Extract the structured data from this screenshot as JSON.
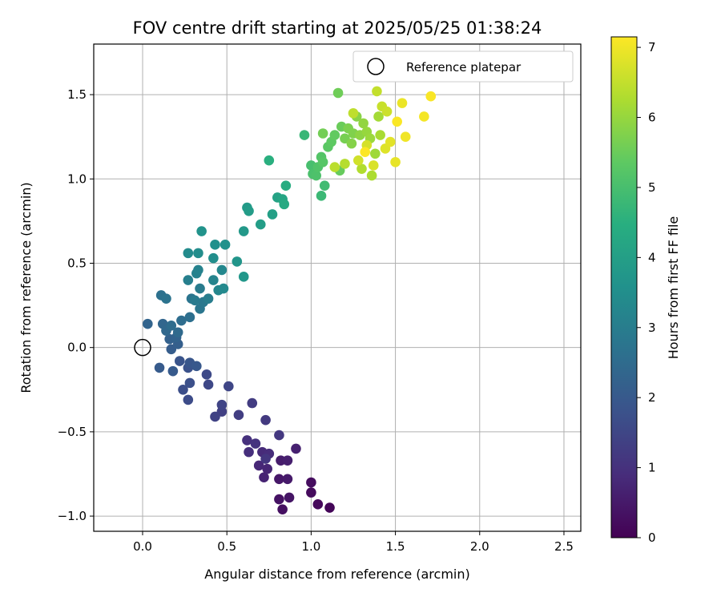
{
  "chart_data": {
    "type": "scatter",
    "title": "FOV centre drift starting at 2025/05/25 01:38:24",
    "xlabel": "Angular distance from reference (arcmin)",
    "ylabel": "Rotation from reference (arcmin)",
    "xlim": [
      -0.29,
      2.6
    ],
    "ylim": [
      -1.09,
      1.8
    ],
    "xticks": [
      0.0,
      0.5,
      1.0,
      1.5,
      2.0,
      2.5
    ],
    "xtick_labels": [
      "0.0",
      "0.5",
      "1.0",
      "1.5",
      "2.0",
      "2.5"
    ],
    "yticks": [
      -1.0,
      -0.5,
      0.0,
      0.5,
      1.0,
      1.5
    ],
    "ytick_labels": [
      "−1.0",
      "−0.5",
      "0.0",
      "0.5",
      "1.0",
      "1.5"
    ],
    "grid": true,
    "legend": {
      "position": "top-right",
      "entries": [
        "Reference platepar"
      ]
    },
    "reference_point": {
      "x": 0.0,
      "y": 0.0,
      "label": "Reference platepar"
    },
    "colorbar": {
      "label": "Hours from first FF file",
      "colormap": "viridis",
      "range": [
        0,
        7.15
      ],
      "ticks": [
        0,
        1,
        2,
        3,
        4,
        5,
        6,
        7
      ],
      "tick_labels": [
        "0",
        "1",
        "2",
        "3",
        "4",
        "5",
        "6",
        "7"
      ]
    },
    "points": [
      {
        "x": 1.11,
        "y": -0.95,
        "h": 0.1
      },
      {
        "x": 1.04,
        "y": -0.93,
        "h": 0.15
      },
      {
        "x": 1.0,
        "y": -0.86,
        "h": 0.2
      },
      {
        "x": 1.0,
        "y": -0.8,
        "h": 0.25
      },
      {
        "x": 0.83,
        "y": -0.96,
        "h": 0.3
      },
      {
        "x": 0.81,
        "y": -0.9,
        "h": 0.35
      },
      {
        "x": 0.87,
        "y": -0.89,
        "h": 0.4
      },
      {
        "x": 0.81,
        "y": -0.78,
        "h": 0.45
      },
      {
        "x": 0.86,
        "y": -0.78,
        "h": 0.5
      },
      {
        "x": 0.82,
        "y": -0.67,
        "h": 0.55
      },
      {
        "x": 0.86,
        "y": -0.67,
        "h": 0.6
      },
      {
        "x": 0.91,
        "y": -0.6,
        "h": 0.65
      },
      {
        "x": 0.72,
        "y": -0.77,
        "h": 0.7
      },
      {
        "x": 0.74,
        "y": -0.72,
        "h": 0.75
      },
      {
        "x": 0.69,
        "y": -0.7,
        "h": 0.8
      },
      {
        "x": 0.71,
        "y": -0.62,
        "h": 0.85
      },
      {
        "x": 0.75,
        "y": -0.63,
        "h": 0.9
      },
      {
        "x": 0.63,
        "y": -0.62,
        "h": 0.95
      },
      {
        "x": 0.62,
        "y": -0.55,
        "h": 1.0
      },
      {
        "x": 0.67,
        "y": -0.57,
        "h": 1.05
      },
      {
        "x": 0.73,
        "y": -0.66,
        "h": 1.1
      },
      {
        "x": 0.81,
        "y": -0.52,
        "h": 1.15
      },
      {
        "x": 0.73,
        "y": -0.43,
        "h": 1.2
      },
      {
        "x": 0.65,
        "y": -0.33,
        "h": 1.25
      },
      {
        "x": 0.57,
        "y": -0.4,
        "h": 1.3
      },
      {
        "x": 0.47,
        "y": -0.38,
        "h": 1.35
      },
      {
        "x": 0.43,
        "y": -0.41,
        "h": 1.4
      },
      {
        "x": 0.47,
        "y": -0.34,
        "h": 1.45
      },
      {
        "x": 0.51,
        "y": -0.23,
        "h": 1.5
      },
      {
        "x": 0.39,
        "y": -0.22,
        "h": 1.55
      },
      {
        "x": 0.38,
        "y": -0.16,
        "h": 1.6
      },
      {
        "x": 0.27,
        "y": -0.31,
        "h": 1.65
      },
      {
        "x": 0.24,
        "y": -0.25,
        "h": 1.7
      },
      {
        "x": 0.28,
        "y": -0.21,
        "h": 1.75
      },
      {
        "x": 0.27,
        "y": -0.12,
        "h": 1.8
      },
      {
        "x": 0.22,
        "y": -0.08,
        "h": 1.85
      },
      {
        "x": 0.28,
        "y": -0.09,
        "h": 1.9
      },
      {
        "x": 0.32,
        "y": -0.11,
        "h": 1.95
      },
      {
        "x": 0.18,
        "y": -0.14,
        "h": 2.0
      },
      {
        "x": 0.1,
        "y": -0.12,
        "h": 2.05
      },
      {
        "x": 0.17,
        "y": -0.01,
        "h": 2.1
      },
      {
        "x": 0.21,
        "y": 0.02,
        "h": 2.15
      },
      {
        "x": 0.16,
        "y": 0.05,
        "h": 2.2
      },
      {
        "x": 0.2,
        "y": 0.06,
        "h": 2.25
      },
      {
        "x": 0.03,
        "y": 0.14,
        "h": 2.3
      },
      {
        "x": 0.12,
        "y": 0.14,
        "h": 2.35
      },
      {
        "x": 0.14,
        "y": 0.1,
        "h": 2.4
      },
      {
        "x": 0.21,
        "y": 0.09,
        "h": 2.45
      },
      {
        "x": 0.17,
        "y": 0.13,
        "h": 2.5
      },
      {
        "x": 0.23,
        "y": 0.16,
        "h": 2.55
      },
      {
        "x": 0.28,
        "y": 0.18,
        "h": 2.6
      },
      {
        "x": 0.11,
        "y": 0.31,
        "h": 2.65
      },
      {
        "x": 0.14,
        "y": 0.29,
        "h": 2.7
      },
      {
        "x": 0.29,
        "y": 0.29,
        "h": 2.75
      },
      {
        "x": 0.34,
        "y": 0.23,
        "h": 2.8
      },
      {
        "x": 0.36,
        "y": 0.27,
        "h": 2.85
      },
      {
        "x": 0.31,
        "y": 0.28,
        "h": 2.9
      },
      {
        "x": 0.34,
        "y": 0.35,
        "h": 2.95
      },
      {
        "x": 0.39,
        "y": 0.29,
        "h": 3.0
      },
      {
        "x": 0.27,
        "y": 0.4,
        "h": 3.05
      },
      {
        "x": 0.32,
        "y": 0.44,
        "h": 3.1
      },
      {
        "x": 0.33,
        "y": 0.46,
        "h": 3.15
      },
      {
        "x": 0.42,
        "y": 0.4,
        "h": 3.2
      },
      {
        "x": 0.45,
        "y": 0.34,
        "h": 3.25
      },
      {
        "x": 0.47,
        "y": 0.46,
        "h": 3.3
      },
      {
        "x": 0.48,
        "y": 0.35,
        "h": 3.35
      },
      {
        "x": 0.27,
        "y": 0.56,
        "h": 3.4
      },
      {
        "x": 0.33,
        "y": 0.56,
        "h": 3.45
      },
      {
        "x": 0.42,
        "y": 0.53,
        "h": 3.5
      },
      {
        "x": 0.43,
        "y": 0.61,
        "h": 3.55
      },
      {
        "x": 0.49,
        "y": 0.61,
        "h": 3.6
      },
      {
        "x": 0.35,
        "y": 0.69,
        "h": 3.65
      },
      {
        "x": 0.56,
        "y": 0.51,
        "h": 3.7
      },
      {
        "x": 0.6,
        "y": 0.42,
        "h": 3.75
      },
      {
        "x": 0.6,
        "y": 0.69,
        "h": 3.8
      },
      {
        "x": 0.62,
        "y": 0.83,
        "h": 3.85
      },
      {
        "x": 0.63,
        "y": 0.81,
        "h": 3.9
      },
      {
        "x": 0.7,
        "y": 0.73,
        "h": 3.95
      },
      {
        "x": 0.77,
        "y": 0.79,
        "h": 4.0
      },
      {
        "x": 0.8,
        "y": 0.89,
        "h": 4.1
      },
      {
        "x": 0.83,
        "y": 0.88,
        "h": 4.2
      },
      {
        "x": 0.84,
        "y": 0.85,
        "h": 4.3
      },
      {
        "x": 0.85,
        "y": 0.96,
        "h": 4.4
      },
      {
        "x": 0.75,
        "y": 1.11,
        "h": 4.5
      },
      {
        "x": 0.96,
        "y": 1.26,
        "h": 4.75
      },
      {
        "x": 1.06,
        "y": 0.9,
        "h": 4.8
      },
      {
        "x": 1.08,
        "y": 0.96,
        "h": 4.9
      },
      {
        "x": 1.0,
        "y": 1.08,
        "h": 5.0
      },
      {
        "x": 1.01,
        "y": 1.03,
        "h": 5.05
      },
      {
        "x": 1.03,
        "y": 1.02,
        "h": 5.1
      },
      {
        "x": 1.04,
        "y": 1.07,
        "h": 5.15
      },
      {
        "x": 1.06,
        "y": 1.13,
        "h": 5.2
      },
      {
        "x": 1.07,
        "y": 1.1,
        "h": 5.25
      },
      {
        "x": 1.1,
        "y": 1.19,
        "h": 5.3
      },
      {
        "x": 1.12,
        "y": 1.22,
        "h": 5.35
      },
      {
        "x": 1.14,
        "y": 1.26,
        "h": 5.4
      },
      {
        "x": 1.17,
        "y": 1.05,
        "h": 5.45
      },
      {
        "x": 1.18,
        "y": 1.31,
        "h": 5.5
      },
      {
        "x": 1.16,
        "y": 1.51,
        "h": 5.55
      },
      {
        "x": 1.07,
        "y": 1.27,
        "h": 5.6
      },
      {
        "x": 1.2,
        "y": 1.24,
        "h": 5.65
      },
      {
        "x": 1.22,
        "y": 1.3,
        "h": 5.7
      },
      {
        "x": 1.25,
        "y": 1.27,
        "h": 5.75
      },
      {
        "x": 1.24,
        "y": 1.21,
        "h": 5.8
      },
      {
        "x": 1.27,
        "y": 1.37,
        "h": 5.85
      },
      {
        "x": 1.29,
        "y": 1.26,
        "h": 5.9
      },
      {
        "x": 1.31,
        "y": 1.33,
        "h": 5.95
      },
      {
        "x": 1.33,
        "y": 1.28,
        "h": 6.0
      },
      {
        "x": 1.35,
        "y": 1.24,
        "h": 6.05
      },
      {
        "x": 1.38,
        "y": 1.15,
        "h": 6.1
      },
      {
        "x": 1.4,
        "y": 1.37,
        "h": 6.15
      },
      {
        "x": 1.41,
        "y": 1.26,
        "h": 6.2
      },
      {
        "x": 1.36,
        "y": 1.02,
        "h": 6.25
      },
      {
        "x": 1.3,
        "y": 1.06,
        "h": 6.3
      },
      {
        "x": 1.2,
        "y": 1.09,
        "h": 6.35
      },
      {
        "x": 1.14,
        "y": 1.07,
        "h": 6.4
      },
      {
        "x": 1.25,
        "y": 1.39,
        "h": 6.45
      },
      {
        "x": 1.39,
        "y": 1.52,
        "h": 6.5
      },
      {
        "x": 1.42,
        "y": 1.43,
        "h": 6.55
      },
      {
        "x": 1.45,
        "y": 1.4,
        "h": 6.6
      },
      {
        "x": 1.28,
        "y": 1.11,
        "h": 6.65
      },
      {
        "x": 1.33,
        "y": 1.2,
        "h": 6.7
      },
      {
        "x": 1.37,
        "y": 1.08,
        "h": 6.75
      },
      {
        "x": 1.44,
        "y": 1.18,
        "h": 6.8
      },
      {
        "x": 1.47,
        "y": 1.22,
        "h": 6.85
      },
      {
        "x": 1.5,
        "y": 1.1,
        "h": 6.9
      },
      {
        "x": 1.54,
        "y": 1.45,
        "h": 6.95
      },
      {
        "x": 1.56,
        "y": 1.25,
        "h": 7.0
      },
      {
        "x": 1.67,
        "y": 1.37,
        "h": 7.05
      },
      {
        "x": 1.71,
        "y": 1.49,
        "h": 7.1
      },
      {
        "x": 1.51,
        "y": 1.34,
        "h": 7.12
      },
      {
        "x": 1.32,
        "y": 1.16,
        "h": 7.14
      }
    ]
  }
}
